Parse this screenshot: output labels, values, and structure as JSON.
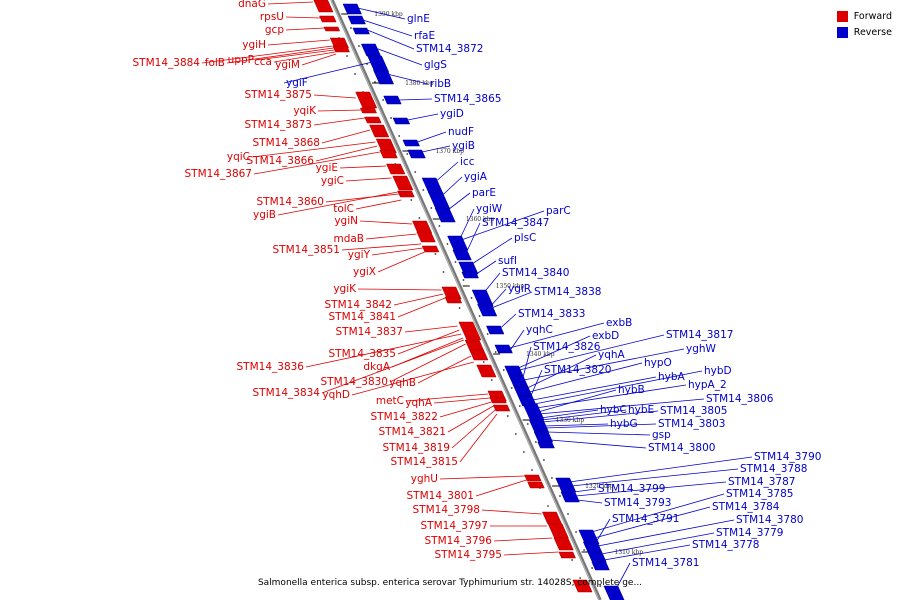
{
  "colors": {
    "forward": "#dd0000",
    "reverse": "#0000cc",
    "backbone": "#777777"
  },
  "legend": [
    {
      "label": "Forward",
      "color": "#dd0000"
    },
    {
      "label": "Reverse",
      "color": "#0000cc"
    }
  ],
  "caption": "Salmonella enterica subsp. enterica serovar Typhimurium str. 14028S, complete ge...",
  "ticks": [
    "1390 kbp",
    "1380 kbp",
    "1370 kbp",
    "1360 kbp",
    "1350 kbp",
    "1340 kbp",
    "1330 kbp",
    "1320 kbp",
    "1310 kbp"
  ],
  "forward_genes": [
    "dnaG",
    "rpsU",
    "gcp",
    "ygiH",
    "STM14_3884",
    "folB",
    "uppP",
    "cca",
    "ygiM",
    "STM14_3875",
    "yqiK",
    "STM14_3873",
    "STM14_3868",
    "yqiC",
    "STM14_3866",
    "STM14_3867",
    "ygiE",
    "ygiC",
    "STM14_3860",
    "tolC",
    "ygiB",
    "ygiN",
    "mdaB",
    "STM14_3851",
    "ygiY",
    "ygiX",
    "ygiK",
    "STM14_3842",
    "STM14_3841",
    "STM14_3837",
    "STM14_3835",
    "STM14_3836",
    "dkgA",
    "STM14_3830",
    "yqhB",
    "STM14_3834",
    "yqhD",
    "metC",
    "yqhA",
    "STM14_3822",
    "STM14_3821",
    "STM14_3819",
    "STM14_3815",
    "yghU",
    "STM14_3801",
    "STM14_3798",
    "STM14_3797",
    "STM14_3796",
    "STM14_3795"
  ],
  "reverse_genes": [
    "glnE",
    "rfaE",
    "STM14_3872",
    "glgS",
    "ygiF",
    "ribB",
    "STM14_3865",
    "ygiD",
    "nudF",
    "ygiB",
    "icc",
    "ygiA",
    "parE",
    "ygiW",
    "parC",
    "STM14_3847",
    "plsC",
    "sufI",
    "STM14_3840",
    "ygiR",
    "STM14_3838",
    "STM14_3833",
    "exbB",
    "yqhC",
    "exbD",
    "STM14_3817",
    "STM14_3826",
    "yghW",
    "yqhA",
    "hypO",
    "STM14_3820",
    "hybA",
    "hybD",
    "hypA_2",
    "hybB",
    "STM14_3806",
    "hybC",
    "hybE",
    "STM14_3805",
    "hybG",
    "STM14_3803",
    "gsp",
    "STM14_3800",
    "STM14_3790",
    "STM14_3788",
    "STM14_3799",
    "STM14_3787",
    "STM14_3793",
    "STM14_3785",
    "STM14_3784",
    "STM14_3791",
    "STM14_3780",
    "STM14_3779",
    "STM14_3778",
    "STM14_3781"
  ]
}
